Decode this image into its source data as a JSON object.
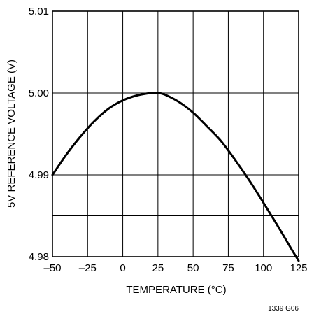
{
  "chart_data": {
    "type": "line",
    "title": "",
    "xlabel": "TEMPERATURE (°C)",
    "ylabel": "5V REFERENCE VOLTAGE (V)",
    "xlim": [
      -50,
      125
    ],
    "ylim": [
      4.98,
      5.01
    ],
    "x_ticks": [
      -50,
      -25,
      0,
      25,
      50,
      75,
      100,
      125
    ],
    "x_tick_labels": [
      "–50",
      "–25",
      "0",
      "25",
      "50",
      "75",
      "100",
      "125"
    ],
    "y_ticks": [
      4.98,
      4.99,
      5.0,
      5.01
    ],
    "y_tick_labels": [
      "4.98",
      "4.99",
      "5.00",
      "5.01"
    ],
    "x_minor_gridlines": [
      -50,
      -25,
      0,
      25,
      50,
      75,
      100,
      125
    ],
    "y_minor_gridlines": [
      4.98,
      4.985,
      4.99,
      4.995,
      5.0,
      5.005,
      5.01
    ],
    "grid": true,
    "series": [
      {
        "name": "",
        "color": "#000000",
        "x": [
          -50,
          -40,
          -30,
          -20,
          -10,
          0,
          10,
          20,
          25,
          30,
          40,
          50,
          60,
          70,
          80,
          90,
          100,
          110,
          120,
          125
        ],
        "y": [
          4.99,
          4.9925,
          4.9947,
          4.9966,
          4.9981,
          4.9991,
          4.9997,
          5.0,
          5.0,
          4.9998,
          4.9989,
          4.9976,
          4.9959,
          4.9941,
          4.9918,
          4.9893,
          4.9866,
          4.9838,
          4.9809,
          4.9795
        ]
      }
    ],
    "figure_code": "1339 G06"
  }
}
